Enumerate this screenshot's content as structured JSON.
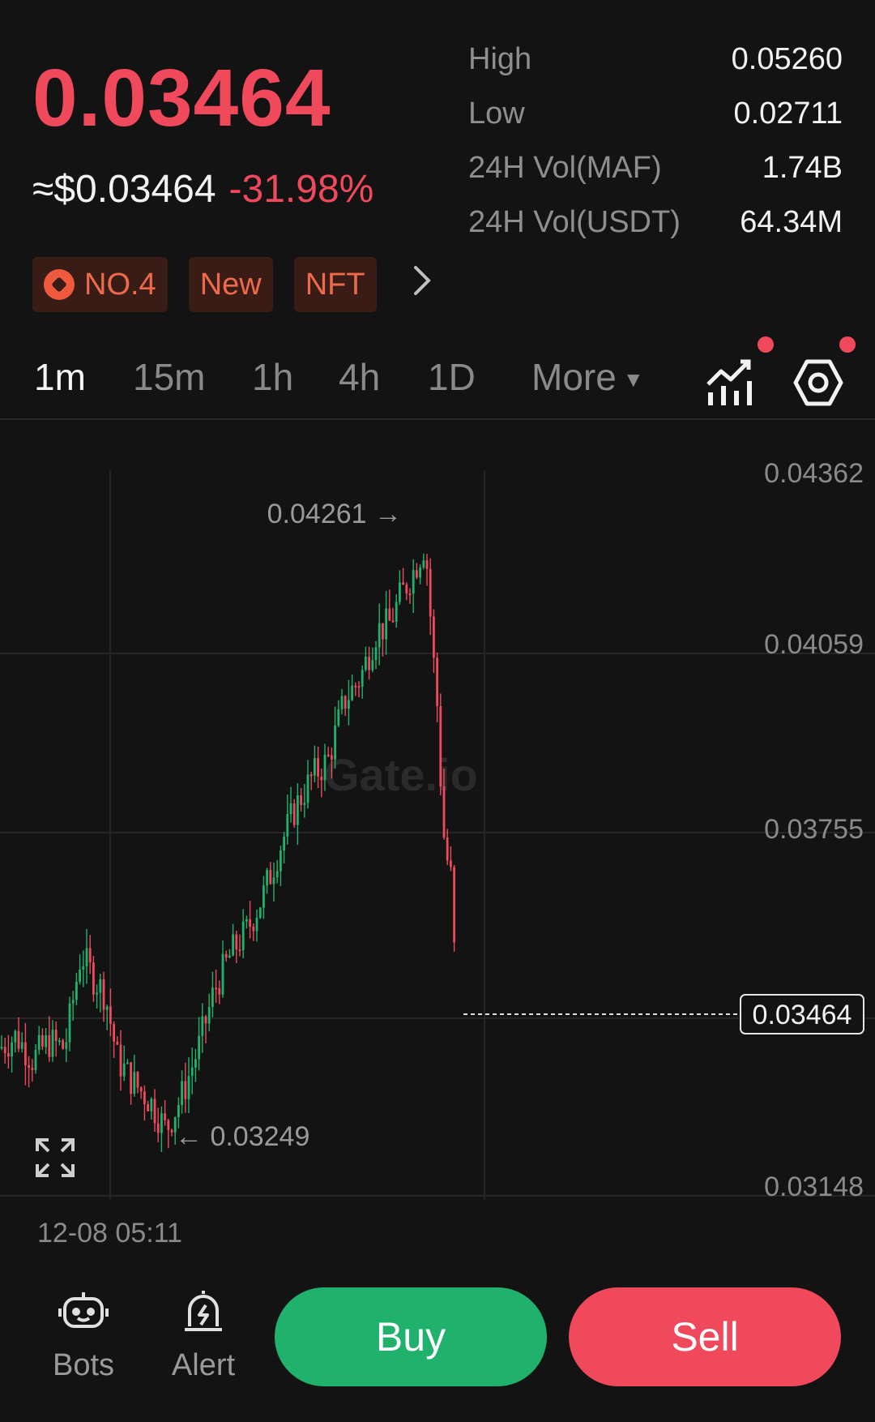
{
  "header": {
    "price": "0.03464",
    "fiat_price": "≈$0.03464",
    "change": "-31.98%",
    "stats": [
      {
        "label": "High",
        "value": "0.05260"
      },
      {
        "label": "Low",
        "value": "0.02711"
      },
      {
        "label": "24H Vol(MAF)",
        "value": "1.74B"
      },
      {
        "label": "24H Vol(USDT)",
        "value": "64.34M"
      }
    ],
    "tags": [
      "NO.4",
      "New",
      "NFT"
    ]
  },
  "intervals": {
    "tabs": [
      "1m",
      "15m",
      "1h",
      "4h",
      "1D"
    ],
    "active": "1m",
    "more_label": "More"
  },
  "chart": {
    "y_ticks": [
      "0.04362",
      "0.04059",
      "0.03755",
      "0.03148"
    ],
    "current_price_label": "0.03464",
    "high_marker": "0.04261 →",
    "low_marker": "← 0.03249",
    "watermark": "Gate.io",
    "date_label": "12-08 05:11"
  },
  "chart_data": {
    "type": "candlestick",
    "y_range": [
      0.03148,
      0.04362
    ],
    "last_price": 0.03464,
    "max_marker": 0.04261,
    "min_marker": 0.03249,
    "colors": {
      "up": "#20b26c",
      "down": "#f0495c"
    }
  },
  "bottom": {
    "bots_label": "Bots",
    "alert_label": "Alert",
    "buy_label": "Buy",
    "sell_label": "Sell"
  },
  "colors": {
    "background": "#131313",
    "red": "#f0495c",
    "green": "#20b26c",
    "tag_bg": "#3a1c17",
    "tag_text": "#ef6a4a"
  }
}
